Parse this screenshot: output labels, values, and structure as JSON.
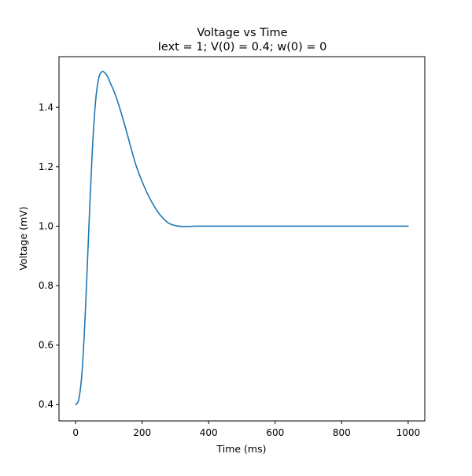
{
  "chart_data": {
    "type": "line",
    "title": "Voltage vs Time",
    "subtitle": "Iext = 1; V(0) = 0.4; w(0) = 0",
    "xlabel": "Time (ms)",
    "ylabel": "Voltage (mV)",
    "xlim": [
      -50,
      1050
    ],
    "ylim": [
      0.345,
      1.57
    ],
    "xticks": [
      0,
      200,
      400,
      600,
      800,
      1000
    ],
    "xtick_labels": [
      "0",
      "200",
      "400",
      "600",
      "800",
      "1000"
    ],
    "yticks": [
      0.4,
      0.6,
      0.8,
      1.0,
      1.2,
      1.4
    ],
    "ytick_labels": [
      "0.4",
      "0.6",
      "0.8",
      "1.0",
      "1.2",
      "1.4"
    ],
    "grid": false,
    "line_color": "#1f77b4",
    "series": [
      {
        "x": [
          0,
          10,
          20,
          30,
          40,
          50,
          60,
          70,
          80,
          88,
          95,
          105,
          120,
          140,
          160,
          180,
          200,
          220,
          240,
          260,
          280,
          300,
          320,
          340,
          360,
          400,
          500,
          600,
          700,
          800,
          900,
          1000
        ],
        "y": [
          0.4,
          0.42,
          0.52,
          0.73,
          1.0,
          1.25,
          1.42,
          1.5,
          1.52,
          1.515,
          1.505,
          1.48,
          1.44,
          1.37,
          1.29,
          1.21,
          1.15,
          1.1,
          1.06,
          1.03,
          1.01,
          1.002,
          0.999,
          0.999,
          1.0,
          1.0,
          1.0,
          1.0,
          1.0,
          1.0,
          1.0,
          1.0
        ]
      }
    ]
  }
}
